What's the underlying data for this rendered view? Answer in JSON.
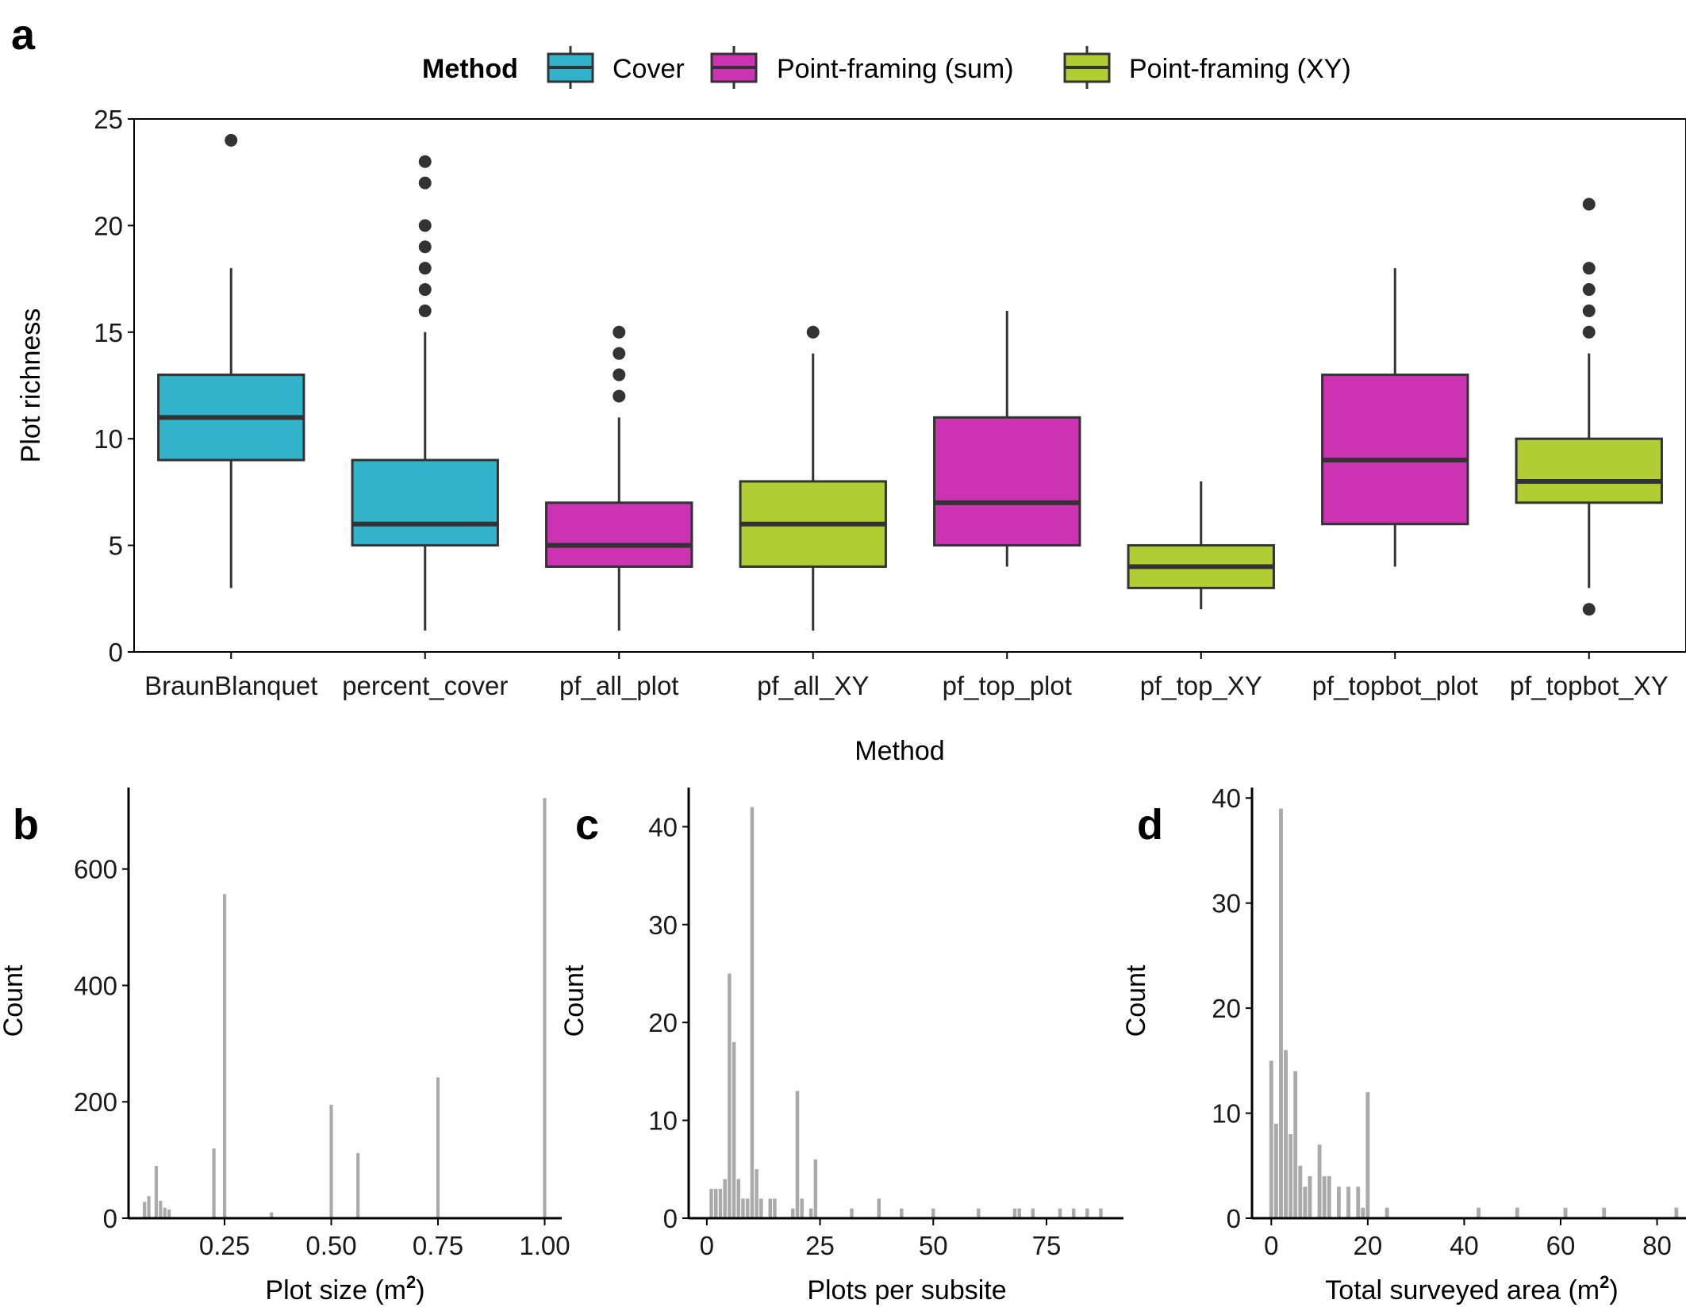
{
  "colors": {
    "cover": "#33B2CC",
    "pf_sum": "#CC33B2",
    "pf_xy": "#B2CC33",
    "hist": "#AAAAAA",
    "outline": "#333333",
    "axis": "#000000"
  },
  "panels": {
    "a": "a",
    "b": "b",
    "c": "c",
    "d": "d"
  },
  "chart_data": [
    {
      "id": "a",
      "type": "box",
      "title": "",
      "xlabel": "Method",
      "ylabel": "Plot richness",
      "ylim": [
        0,
        25
      ],
      "yticks": [
        "0",
        "5",
        "10",
        "15",
        "20",
        "25"
      ],
      "legend": {
        "title": "Method",
        "placement": "top",
        "entries": [
          {
            "label": "Cover",
            "group": "cover"
          },
          {
            "label": "Point-framing (sum)",
            "group": "pf_sum"
          },
          {
            "label": "Point-framing (XY)",
            "group": "pf_xy"
          }
        ]
      },
      "boxes": [
        {
          "label": "BraunBlanquet",
          "group": "cover",
          "min": 3,
          "q1": 9,
          "median": 11,
          "q3": 13,
          "max": 18,
          "outliers": [
            24
          ]
        },
        {
          "label": "percent_cover",
          "group": "cover",
          "min": 1,
          "q1": 5,
          "median": 6,
          "q3": 9,
          "max": 15,
          "outliers": [
            16,
            17,
            18,
            19,
            20,
            22,
            23
          ]
        },
        {
          "label": "pf_all_plot",
          "group": "pf_sum",
          "min": 1,
          "q1": 4,
          "median": 5,
          "q3": 7,
          "max": 11,
          "outliers": [
            12,
            13,
            14,
            15
          ]
        },
        {
          "label": "pf_all_XY",
          "group": "pf_xy",
          "min": 1,
          "q1": 4,
          "median": 6,
          "q3": 8,
          "max": 14,
          "outliers": [
            15
          ]
        },
        {
          "label": "pf_top_plot",
          "group": "pf_sum",
          "min": 4,
          "q1": 5,
          "median": 7,
          "q3": 11,
          "max": 16,
          "outliers": []
        },
        {
          "label": "pf_top_XY",
          "group": "pf_xy",
          "min": 2,
          "q1": 3,
          "median": 4,
          "q3": 5,
          "max": 8,
          "outliers": []
        },
        {
          "label": "pf_topbot_plot",
          "group": "pf_sum",
          "min": 4,
          "q1": 6,
          "median": 9,
          "q3": 13,
          "max": 18,
          "outliers": []
        },
        {
          "label": "pf_topbot_XY",
          "group": "pf_xy",
          "min": 3,
          "q1": 7,
          "median": 8,
          "q3": 10,
          "max": 14,
          "outliers": [
            2,
            15,
            16,
            17,
            18,
            21
          ]
        }
      ]
    },
    {
      "id": "b",
      "type": "histogram",
      "xlabel": "Plot size (m",
      "xlabel_sup": "2",
      "xlabel_end": ")",
      "ylabel": "Count",
      "xlim": [
        0.025,
        1.04
      ],
      "ylim": [
        0,
        740
      ],
      "xticks": [
        0.25,
        0.5,
        0.75,
        1.0
      ],
      "xtick_labels": [
        "0.25",
        "0.50",
        "0.75",
        "1.00"
      ],
      "yticks": [
        0,
        200,
        400,
        600
      ],
      "ytick_labels": [
        "0",
        "200",
        "400",
        "600"
      ],
      "bin_width": 0.01,
      "bins": [
        {
          "x": 0.0625,
          "count": 28
        },
        {
          "x": 0.0725,
          "count": 38
        },
        {
          "x": 0.09,
          "count": 90
        },
        {
          "x": 0.1,
          "count": 30
        },
        {
          "x": 0.11,
          "count": 18
        },
        {
          "x": 0.12,
          "count": 15
        },
        {
          "x": 0.225,
          "count": 120
        },
        {
          "x": 0.25,
          "count": 557
        },
        {
          "x": 0.36,
          "count": 10
        },
        {
          "x": 0.5,
          "count": 195
        },
        {
          "x": 0.5625,
          "count": 112
        },
        {
          "x": 0.75,
          "count": 242
        },
        {
          "x": 1.0,
          "count": 722
        }
      ]
    },
    {
      "id": "c",
      "type": "histogram",
      "xlabel": "Plots per subsite",
      "ylabel": "Count",
      "xlim": [
        -4,
        92
      ],
      "ylim": [
        0,
        44
      ],
      "xticks": [
        0,
        25,
        50,
        75
      ],
      "xtick_labels": [
        "0",
        "25",
        "50",
        "75"
      ],
      "yticks": [
        0,
        10,
        20,
        30,
        40
      ],
      "ytick_labels": [
        "0",
        "10",
        "20",
        "30",
        "40"
      ],
      "bin_width": 1,
      "bins": [
        {
          "x": 1,
          "count": 3
        },
        {
          "x": 2,
          "count": 3
        },
        {
          "x": 3,
          "count": 3
        },
        {
          "x": 4,
          "count": 4
        },
        {
          "x": 5,
          "count": 25
        },
        {
          "x": 6,
          "count": 18
        },
        {
          "x": 7,
          "count": 4
        },
        {
          "x": 8,
          "count": 2
        },
        {
          "x": 9,
          "count": 2
        },
        {
          "x": 10,
          "count": 42
        },
        {
          "x": 11,
          "count": 5
        },
        {
          "x": 12,
          "count": 2
        },
        {
          "x": 14,
          "count": 2
        },
        {
          "x": 15,
          "count": 2
        },
        {
          "x": 19,
          "count": 1
        },
        {
          "x": 20,
          "count": 13
        },
        {
          "x": 21,
          "count": 2
        },
        {
          "x": 23,
          "count": 1
        },
        {
          "x": 24,
          "count": 6
        },
        {
          "x": 32,
          "count": 1
        },
        {
          "x": 38,
          "count": 2
        },
        {
          "x": 43,
          "count": 1
        },
        {
          "x": 50,
          "count": 1
        },
        {
          "x": 60,
          "count": 1
        },
        {
          "x": 68,
          "count": 1
        },
        {
          "x": 69,
          "count": 1
        },
        {
          "x": 72,
          "count": 1
        },
        {
          "x": 78,
          "count": 1
        },
        {
          "x": 81,
          "count": 1
        },
        {
          "x": 84,
          "count": 1
        },
        {
          "x": 87,
          "count": 1
        }
      ]
    },
    {
      "id": "d",
      "type": "histogram",
      "xlabel": "Total surveyed area (m",
      "xlabel_sup": "2",
      "xlabel_end": ")",
      "ylabel": "Count",
      "xlim": [
        -4,
        86
      ],
      "ylim": [
        0,
        41
      ],
      "xticks": [
        0,
        20,
        40,
        60,
        80
      ],
      "xtick_labels": [
        "0",
        "20",
        "40",
        "60",
        "80"
      ],
      "yticks": [
        0,
        10,
        20,
        30,
        40
      ],
      "ytick_labels": [
        "0",
        "10",
        "20",
        "30",
        "40"
      ],
      "bin_width": 1,
      "bins": [
        {
          "x": 0,
          "count": 15
        },
        {
          "x": 1,
          "count": 9
        },
        {
          "x": 2,
          "count": 39
        },
        {
          "x": 3,
          "count": 16
        },
        {
          "x": 4,
          "count": 8
        },
        {
          "x": 5,
          "count": 14
        },
        {
          "x": 6,
          "count": 5
        },
        {
          "x": 7,
          "count": 3
        },
        {
          "x": 8,
          "count": 4
        },
        {
          "x": 10,
          "count": 7
        },
        {
          "x": 11,
          "count": 4
        },
        {
          "x": 12,
          "count": 4
        },
        {
          "x": 14,
          "count": 3
        },
        {
          "x": 16,
          "count": 3
        },
        {
          "x": 18,
          "count": 3
        },
        {
          "x": 19,
          "count": 1
        },
        {
          "x": 20,
          "count": 12
        },
        {
          "x": 24,
          "count": 1
        },
        {
          "x": 43,
          "count": 1
        },
        {
          "x": 51,
          "count": 1
        },
        {
          "x": 61,
          "count": 1
        },
        {
          "x": 69,
          "count": 1
        },
        {
          "x": 84,
          "count": 1
        }
      ]
    }
  ]
}
